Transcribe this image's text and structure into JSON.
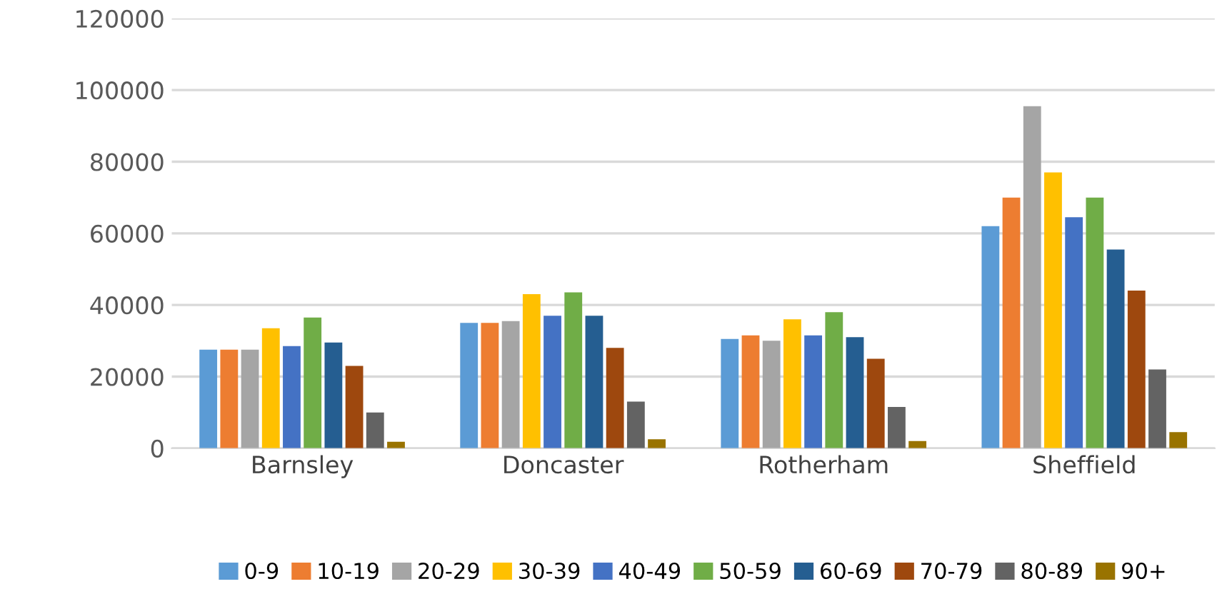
{
  "chart_data": {
    "type": "bar",
    "categories": [
      "Barnsley",
      "Doncaster",
      "Rotherham",
      "Sheffield"
    ],
    "ylim": [
      0,
      120000
    ],
    "yticks": [
      0,
      20000,
      40000,
      60000,
      80000,
      100000,
      120000
    ],
    "grid": "y",
    "legend": "bottom",
    "series": [
      {
        "name": "0-9",
        "color": "#5b9bd5",
        "values": [
          27500,
          35000,
          30500,
          62000
        ]
      },
      {
        "name": "10-19",
        "color": "#ed7d31",
        "values": [
          27500,
          35000,
          31500,
          70000
        ]
      },
      {
        "name": "20-29",
        "color": "#a5a5a5",
        "values": [
          27500,
          35500,
          30000,
          95500
        ]
      },
      {
        "name": "30-39",
        "color": "#ffc000",
        "values": [
          33500,
          43000,
          36000,
          77000
        ]
      },
      {
        "name": "40-49",
        "color": "#4472c4",
        "values": [
          28500,
          37000,
          31500,
          64500
        ]
      },
      {
        "name": "50-59",
        "color": "#70ad47",
        "values": [
          36500,
          43500,
          38000,
          70000
        ]
      },
      {
        "name": "60-69",
        "color": "#255e91",
        "values": [
          29500,
          37000,
          31000,
          55500
        ]
      },
      {
        "name": "70-79",
        "color": "#9e480e",
        "values": [
          23000,
          28000,
          25000,
          44000
        ]
      },
      {
        "name": "80-89",
        "color": "#636363",
        "values": [
          10000,
          13000,
          11500,
          22000
        ]
      },
      {
        "name": "90+",
        "color": "#997300",
        "values": [
          1800,
          2500,
          2000,
          4500
        ]
      }
    ]
  }
}
